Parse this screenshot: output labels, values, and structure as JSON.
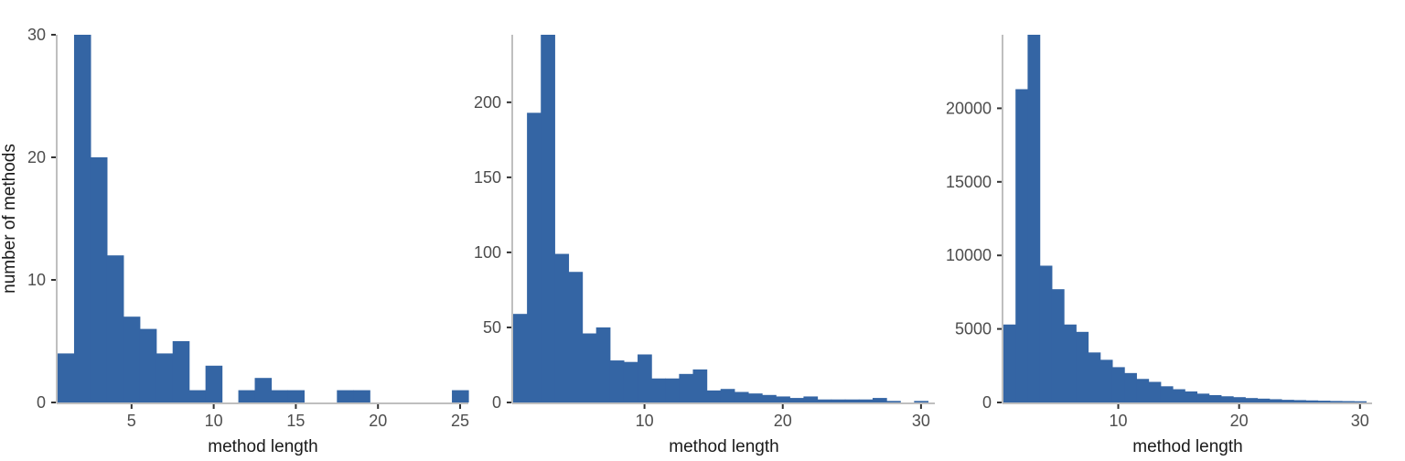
{
  "colors": {
    "bar": "#3465a4",
    "axis": "#bfbfbf",
    "tick": "#333333",
    "text": "#4d4d4d"
  },
  "chart_data": [
    {
      "type": "bar",
      "xlabel": "method length",
      "ylabel": "number of methods",
      "xlim": [
        0.5,
        25.5
      ],
      "ylim": [
        0,
        30
      ],
      "xticks": [
        5,
        10,
        15,
        20,
        25
      ],
      "yticks": [
        0,
        10,
        20,
        30
      ],
      "bin_start": 0.5,
      "bin_width": 1,
      "values": [
        4,
        30,
        20,
        12,
        7,
        6,
        4,
        5,
        1,
        3,
        0,
        1,
        2,
        1,
        1,
        0,
        0,
        1,
        1,
        0,
        0,
        0,
        0,
        0,
        1
      ]
    },
    {
      "type": "bar",
      "xlabel": "method length",
      "ylabel": "",
      "xlim": [
        0.5,
        31
      ],
      "ylim": [
        0,
        245
      ],
      "xticks": [
        10,
        20,
        30
      ],
      "yticks": [
        0,
        50,
        100,
        150,
        200
      ],
      "bin_start": 0.5,
      "bin_width": 1,
      "values": [
        59,
        193,
        245,
        99,
        87,
        46,
        50,
        28,
        27,
        32,
        16,
        16,
        19,
        22,
        8,
        9,
        7,
        6,
        5,
        4,
        3,
        4,
        2,
        2,
        2,
        2,
        3,
        1,
        0,
        1
      ]
    },
    {
      "type": "bar",
      "xlabel": "method length",
      "ylabel": "",
      "xlim": [
        0.5,
        31
      ],
      "ylim": [
        0,
        25000
      ],
      "xticks": [
        10,
        20,
        30
      ],
      "yticks": [
        0,
        5000,
        10000,
        15000,
        20000
      ],
      "bin_start": 0.5,
      "bin_width": 1,
      "values": [
        5300,
        21300,
        25000,
        9300,
        7700,
        5300,
        4800,
        3400,
        2900,
        2400,
        2000,
        1600,
        1400,
        1100,
        900,
        750,
        600,
        500,
        420,
        360,
        300,
        260,
        220,
        180,
        160,
        140,
        120,
        100,
        90,
        80
      ]
    }
  ]
}
